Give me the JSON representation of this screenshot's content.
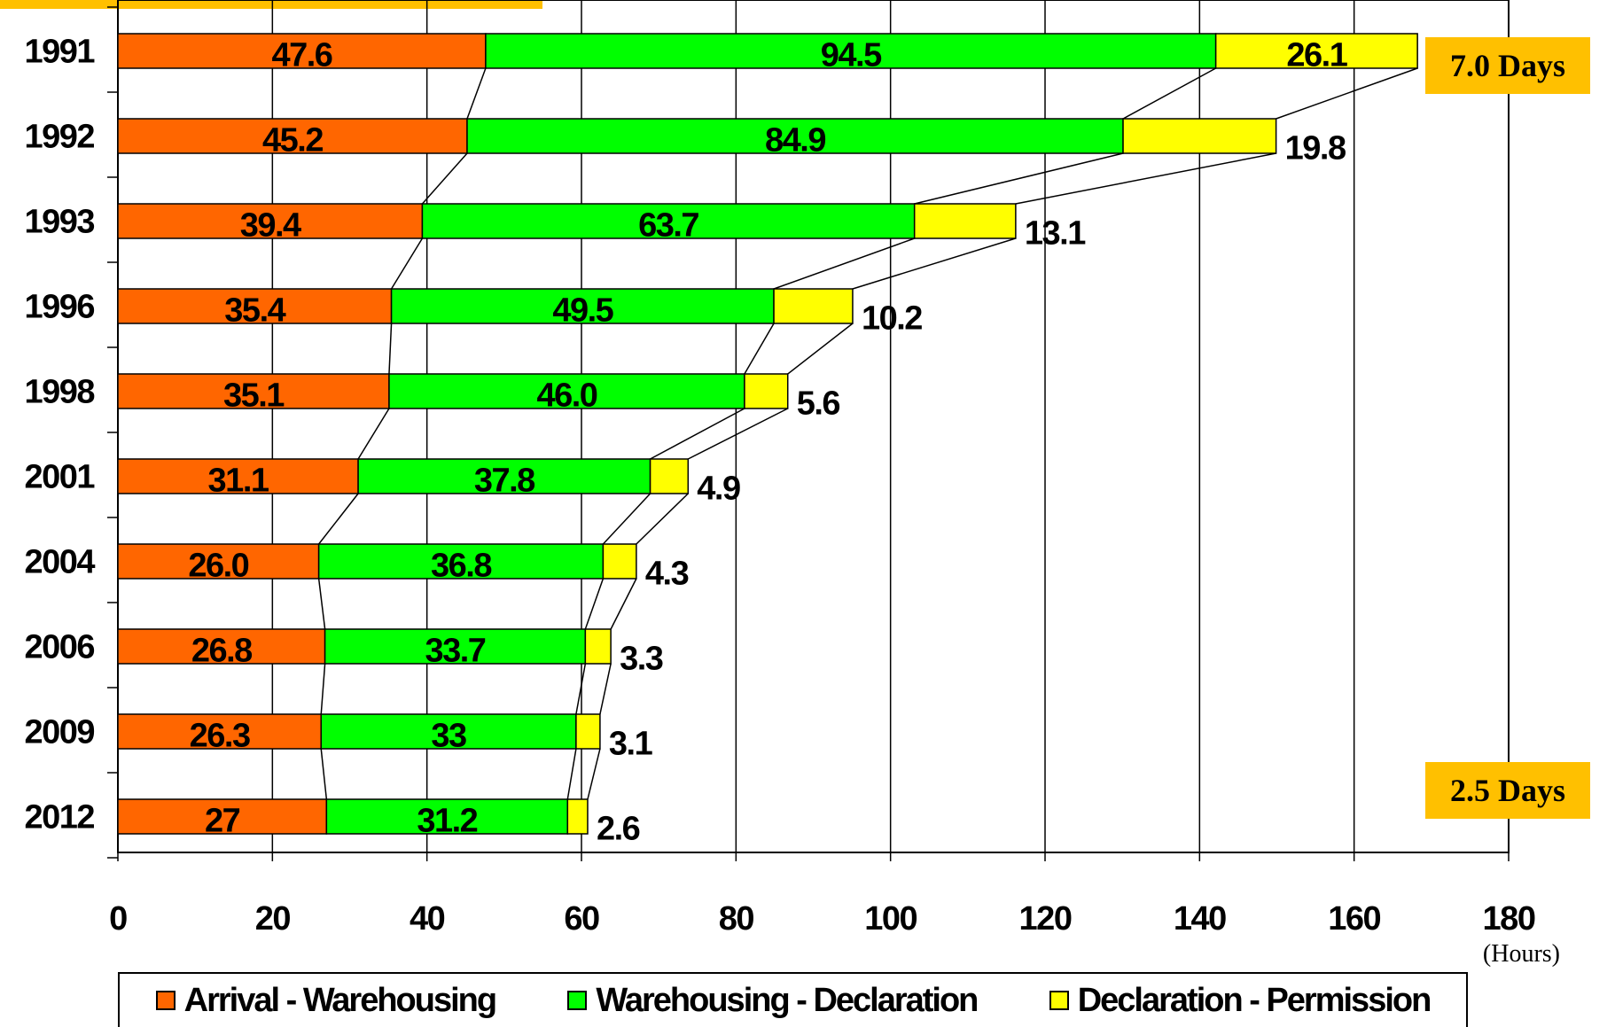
{
  "chart_data": {
    "type": "bar",
    "orientation": "horizontal",
    "stacked": true,
    "categories": [
      "1991",
      "1992",
      "1993",
      "1996",
      "1998",
      "2001",
      "2004",
      "2006",
      "2009",
      "2012"
    ],
    "series": [
      {
        "name": "Arrival - Warehousing",
        "color": "#FF6600",
        "values": [
          47.6,
          45.2,
          39.4,
          35.4,
          35.1,
          31.1,
          26.0,
          26.8,
          26.3,
          27
        ]
      },
      {
        "name": "Warehousing - Declaration",
        "color": "#00FF00",
        "values": [
          94.5,
          84.9,
          63.7,
          49.5,
          46.0,
          37.8,
          36.8,
          33.7,
          33,
          31.2
        ]
      },
      {
        "name": "Declaration - Permission",
        "color": "#FFFF00",
        "values": [
          26.1,
          19.8,
          13.1,
          10.2,
          5.6,
          4.9,
          4.3,
          3.3,
          3.1,
          2.6
        ]
      }
    ],
    "value_labels": [
      [
        "47.6",
        "94.5",
        "26.1"
      ],
      [
        "45.2",
        "84.9",
        "19.8"
      ],
      [
        "39.4",
        "63.7",
        "13.1"
      ],
      [
        "35.4",
        "49.5",
        "10.2"
      ],
      [
        "35.1",
        "46.0",
        "5.6"
      ],
      [
        "31.1",
        "37.8",
        "4.9"
      ],
      [
        "26.0",
        "36.8",
        "4.3"
      ],
      [
        "26.8",
        "33.7",
        "3.3"
      ],
      [
        "26.3",
        "33",
        "3.1"
      ],
      [
        "27",
        "31.2",
        "2.6"
      ]
    ],
    "xlim": [
      0,
      180
    ],
    "xticks": [
      "0",
      "20",
      "40",
      "60",
      "80",
      "100",
      "120",
      "140",
      "160",
      "180"
    ],
    "xunit": "(Hours)",
    "grid": "vertical",
    "legend_position": "bottom",
    "callouts": [
      "7.0 Days",
      "2.5 Days"
    ]
  },
  "colors": {
    "callout_bg": "#FFC000",
    "axis": "#000000"
  }
}
